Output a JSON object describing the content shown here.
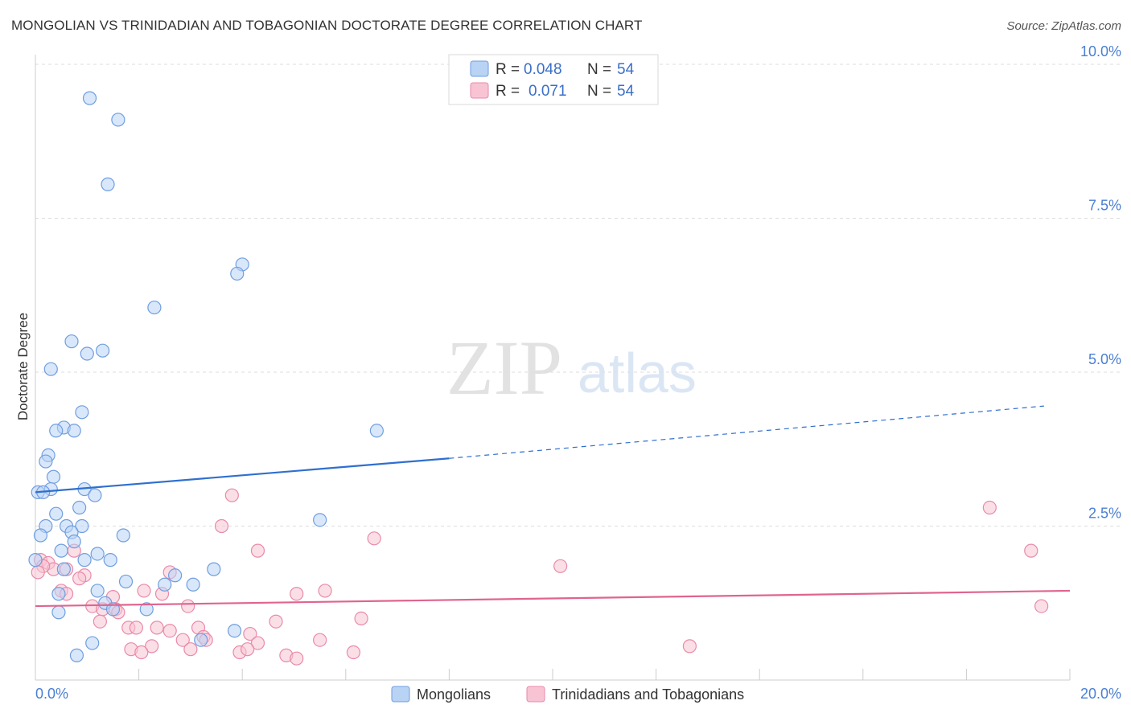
{
  "header": {
    "title": "MONGOLIAN VS TRINIDADIAN AND TOBAGONIAN DOCTORATE DEGREE CORRELATION CHART",
    "source": "Source: ZipAtlas.com"
  },
  "watermark": {
    "zip": "ZIP",
    "atlas": "atlas"
  },
  "colors": {
    "mongolian_fill": "#b9d3f5",
    "mongolian_stroke": "#6f9ee0",
    "mongolian_line": "#2f6fcf",
    "trini_fill": "#f8c4d4",
    "trini_stroke": "#e98aa9",
    "trini_line": "#e0648f",
    "grid": "#dddddd",
    "axis_label": "#4a7fd4"
  },
  "legend": {
    "rows": [
      {
        "r_label": "R =",
        "r_value": "0.048",
        "n_label": "N =",
        "n_value": "54"
      },
      {
        "r_label": "R =",
        "r_value": "0.071",
        "n_label": "N =",
        "n_value": "54"
      }
    ]
  },
  "bottom_legend": {
    "mongolians": "Mongolians",
    "trinidadians": "Trinidadians and Tobagonians"
  },
  "chart_data": {
    "type": "scatter",
    "title": "MONGOLIAN VS TRINIDADIAN AND TOBAGONIAN DOCTORATE DEGREE CORRELATION CHART",
    "xlabel": "",
    "ylabel": "Doctorate Degree",
    "xlim": [
      0,
      20
    ],
    "ylim": [
      0,
      10.0
    ],
    "x_tick_labels": [
      "0.0%",
      "20.0%"
    ],
    "y_ticks": [
      {
        "value": 2.5,
        "label": "2.5%"
      },
      {
        "value": 5.0,
        "label": "5.0%"
      },
      {
        "value": 7.5,
        "label": "7.5%"
      },
      {
        "value": 10.0,
        "label": "10.0%"
      }
    ],
    "grid": true,
    "series": [
      {
        "name": "Mongolians",
        "r": 0.048,
        "n": 54,
        "trend": {
          "x0": 0.0,
          "y0": 3.05,
          "x1": 8.0,
          "y1": 3.6,
          "dash_to_x": 19.5,
          "dash_to_y": 4.45
        },
        "points": [
          [
            1.05,
            9.45
          ],
          [
            1.6,
            9.1
          ],
          [
            1.4,
            8.05
          ],
          [
            4.0,
            6.75
          ],
          [
            3.9,
            6.6
          ],
          [
            2.3,
            6.05
          ],
          [
            0.7,
            5.5
          ],
          [
            1.3,
            5.35
          ],
          [
            1.0,
            5.3
          ],
          [
            0.3,
            5.05
          ],
          [
            0.9,
            4.35
          ],
          [
            0.55,
            4.1
          ],
          [
            0.75,
            4.05
          ],
          [
            0.4,
            4.05
          ],
          [
            6.6,
            4.05
          ],
          [
            0.25,
            3.65
          ],
          [
            0.2,
            3.55
          ],
          [
            0.35,
            3.3
          ],
          [
            0.3,
            3.1
          ],
          [
            0.05,
            3.05
          ],
          [
            0.15,
            3.05
          ],
          [
            0.95,
            3.1
          ],
          [
            1.15,
            3.0
          ],
          [
            0.4,
            2.7
          ],
          [
            0.85,
            2.8
          ],
          [
            5.5,
            2.6
          ],
          [
            0.2,
            2.5
          ],
          [
            0.6,
            2.5
          ],
          [
            0.9,
            2.5
          ],
          [
            0.7,
            2.4
          ],
          [
            0.1,
            2.35
          ],
          [
            1.7,
            2.35
          ],
          [
            0.75,
            2.25
          ],
          [
            0.5,
            2.1
          ],
          [
            1.2,
            2.05
          ],
          [
            0.95,
            1.95
          ],
          [
            1.45,
            1.95
          ],
          [
            3.45,
            1.8
          ],
          [
            0.55,
            1.8
          ],
          [
            2.7,
            1.7
          ],
          [
            1.75,
            1.6
          ],
          [
            2.5,
            1.55
          ],
          [
            3.05,
            1.55
          ],
          [
            1.2,
            1.45
          ],
          [
            0.45,
            1.4
          ],
          [
            1.35,
            1.25
          ],
          [
            1.5,
            1.15
          ],
          [
            2.15,
            1.15
          ],
          [
            0.45,
            1.1
          ],
          [
            3.85,
            0.8
          ],
          [
            1.1,
            0.6
          ],
          [
            3.2,
            0.65
          ],
          [
            0.8,
            0.4
          ],
          [
            0.0,
            1.95
          ]
        ]
      },
      {
        "name": "Trinidadians and Tobagonians",
        "r": 0.071,
        "n": 54,
        "trend": {
          "x0": 0.0,
          "y0": 1.2,
          "x1": 20.0,
          "y1": 1.45
        },
        "points": [
          [
            3.8,
            3.0
          ],
          [
            18.45,
            2.8
          ],
          [
            3.6,
            2.5
          ],
          [
            6.55,
            2.3
          ],
          [
            4.3,
            2.1
          ],
          [
            19.25,
            2.1
          ],
          [
            0.75,
            2.1
          ],
          [
            0.1,
            1.95
          ],
          [
            0.25,
            1.9
          ],
          [
            0.35,
            1.8
          ],
          [
            0.6,
            1.8
          ],
          [
            10.15,
            1.85
          ],
          [
            2.6,
            1.75
          ],
          [
            0.95,
            1.7
          ],
          [
            0.85,
            1.65
          ],
          [
            0.5,
            1.45
          ],
          [
            0.6,
            1.4
          ],
          [
            2.1,
            1.45
          ],
          [
            2.45,
            1.4
          ],
          [
            1.5,
            1.35
          ],
          [
            5.05,
            1.4
          ],
          [
            5.6,
            1.45
          ],
          [
            1.1,
            1.2
          ],
          [
            2.95,
            1.2
          ],
          [
            1.55,
            1.15
          ],
          [
            1.3,
            1.15
          ],
          [
            1.6,
            1.1
          ],
          [
            19.45,
            1.2
          ],
          [
            6.3,
            1.0
          ],
          [
            1.25,
            0.95
          ],
          [
            4.65,
            0.95
          ],
          [
            1.8,
            0.85
          ],
          [
            1.95,
            0.85
          ],
          [
            2.35,
            0.85
          ],
          [
            2.6,
            0.8
          ],
          [
            3.15,
            0.85
          ],
          [
            3.25,
            0.7
          ],
          [
            2.85,
            0.65
          ],
          [
            3.3,
            0.65
          ],
          [
            4.15,
            0.75
          ],
          [
            5.5,
            0.65
          ],
          [
            4.3,
            0.6
          ],
          [
            1.85,
            0.5
          ],
          [
            2.25,
            0.55
          ],
          [
            3.0,
            0.5
          ],
          [
            3.95,
            0.45
          ],
          [
            4.1,
            0.5
          ],
          [
            2.05,
            0.45
          ],
          [
            6.15,
            0.45
          ],
          [
            4.85,
            0.4
          ],
          [
            5.05,
            0.35
          ],
          [
            12.65,
            0.55
          ],
          [
            0.15,
            1.85
          ],
          [
            0.05,
            1.75
          ]
        ]
      }
    ]
  }
}
